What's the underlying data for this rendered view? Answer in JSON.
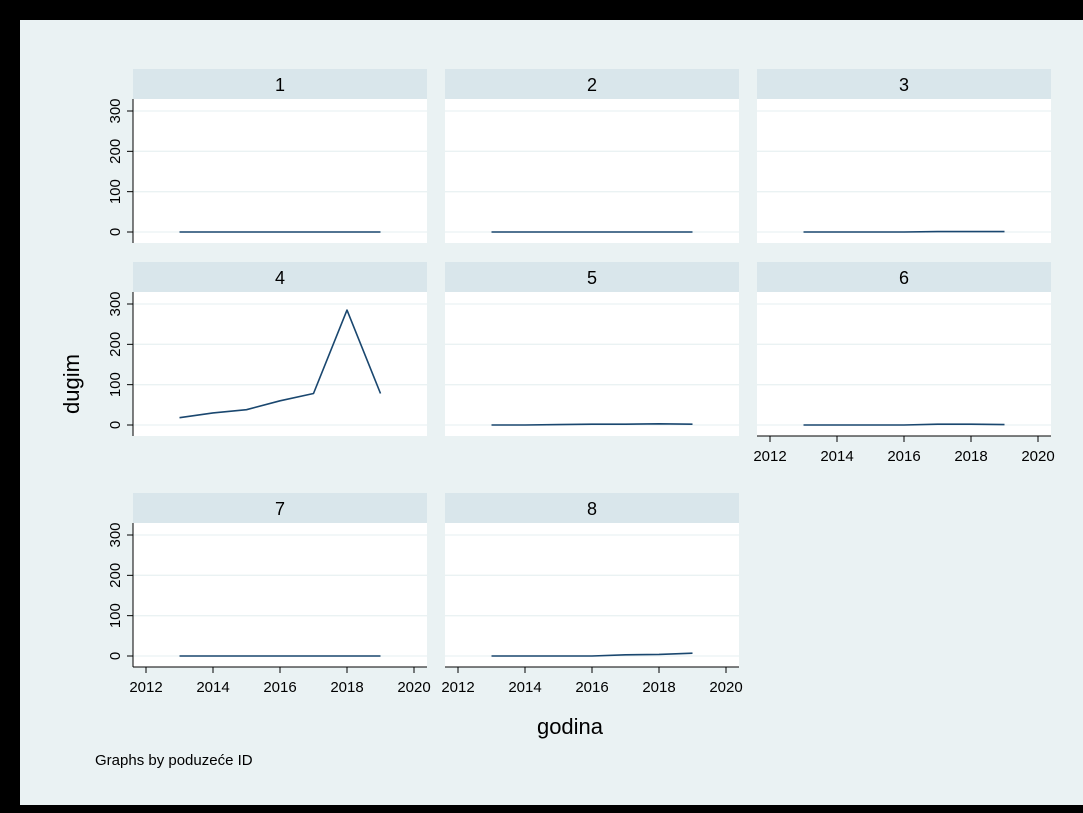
{
  "chart_data": {
    "type": "line",
    "ylabel": "dugim",
    "xlabel": "godina",
    "note": "Graphs by poduzeće ID",
    "xlim": [
      2012,
      2020
    ],
    "ylim": [
      0,
      300
    ],
    "xticks": [
      2012,
      2014,
      2016,
      2018,
      2020
    ],
    "yticks": [
      0,
      100,
      200,
      300
    ],
    "grid": true,
    "x": [
      2013,
      2014,
      2015,
      2016,
      2017,
      2018,
      2019
    ],
    "panels": [
      {
        "label": "1",
        "values": [
          0,
          0,
          0,
          0,
          0,
          0,
          0
        ]
      },
      {
        "label": "2",
        "values": [
          0,
          0,
          0,
          0,
          0,
          0,
          0
        ]
      },
      {
        "label": "3",
        "values": [
          0,
          0,
          0,
          0,
          1,
          1,
          1
        ]
      },
      {
        "label": "4",
        "values": [
          18,
          30,
          38,
          60,
          78,
          285,
          78
        ]
      },
      {
        "label": "5",
        "values": [
          0,
          0,
          1,
          2,
          2,
          3,
          2
        ]
      },
      {
        "label": "6",
        "values": [
          0,
          0,
          0,
          0,
          2,
          2,
          1
        ]
      },
      {
        "label": "7",
        "values": [
          0,
          0,
          0,
          0,
          0,
          0,
          0
        ]
      },
      {
        "label": "8",
        "values": [
          0,
          0,
          0,
          0,
          3,
          4,
          7
        ]
      }
    ]
  },
  "colors": {
    "background": "#eaf2f3",
    "header": "#d9e6eb",
    "plot": "#ffffff",
    "grid": "#eaf2f3",
    "line": "#1a476f",
    "text": "#000000",
    "frame": "#000000"
  }
}
